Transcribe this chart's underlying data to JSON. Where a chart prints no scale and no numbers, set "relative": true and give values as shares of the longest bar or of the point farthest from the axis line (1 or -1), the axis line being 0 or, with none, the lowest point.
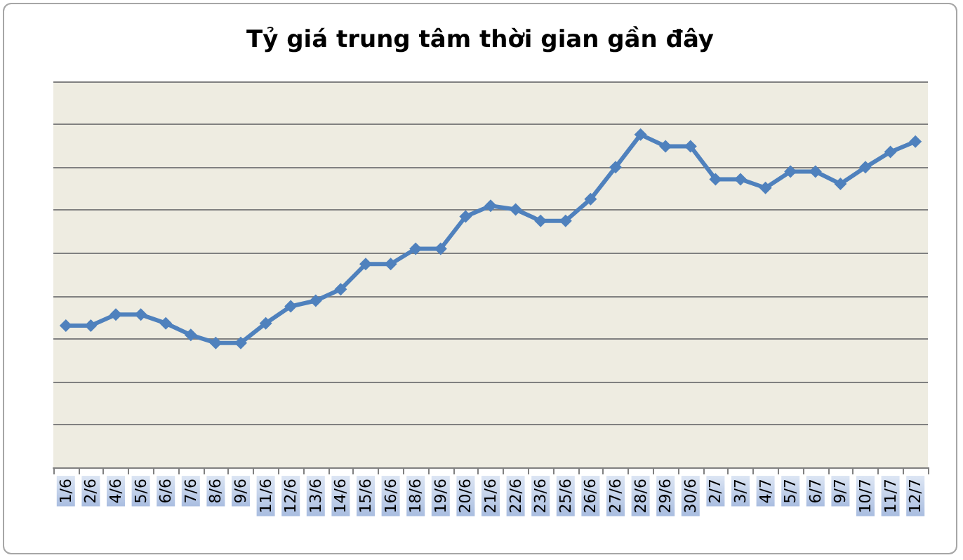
{
  "chart_data": {
    "type": "line",
    "title": "Tỷ giá trung tâm thời gian gần đây",
    "relative": true,
    "grid": "y",
    "marker": "diamond",
    "line_style": "solid",
    "categories": [
      "1/6",
      "2/6",
      "4/6",
      "5/6",
      "6/6",
      "7/6",
      "8/6",
      "9/6",
      "11/6",
      "12/6",
      "13/6",
      "14/6",
      "15/6",
      "16/6",
      "18/6",
      "19/6",
      "20/6",
      "21/6",
      "22/6",
      "23/6",
      "25/6",
      "26/6",
      "27/6",
      "28/6",
      "29/6",
      "30/6",
      "2/7",
      "3/7",
      "4/7",
      "5/7",
      "6/7",
      "9/7",
      "10/7",
      "11/7",
      "12/7"
    ],
    "series": [
      {
        "color": "#4f81bd",
        "values": [
          0.426,
          0.426,
          0.459,
          0.459,
          0.433,
          0.398,
          0.374,
          0.374,
          0.433,
          0.484,
          0.501,
          0.535,
          0.611,
          0.611,
          0.657,
          0.657,
          0.754,
          0.786,
          0.775,
          0.741,
          0.741,
          0.806,
          0.902,
          1,
          0.965,
          0.965,
          0.866,
          0.866,
          0.84,
          0.889,
          0.889,
          0.852,
          0.902,
          0.948,
          0.979
        ]
      }
    ]
  }
}
